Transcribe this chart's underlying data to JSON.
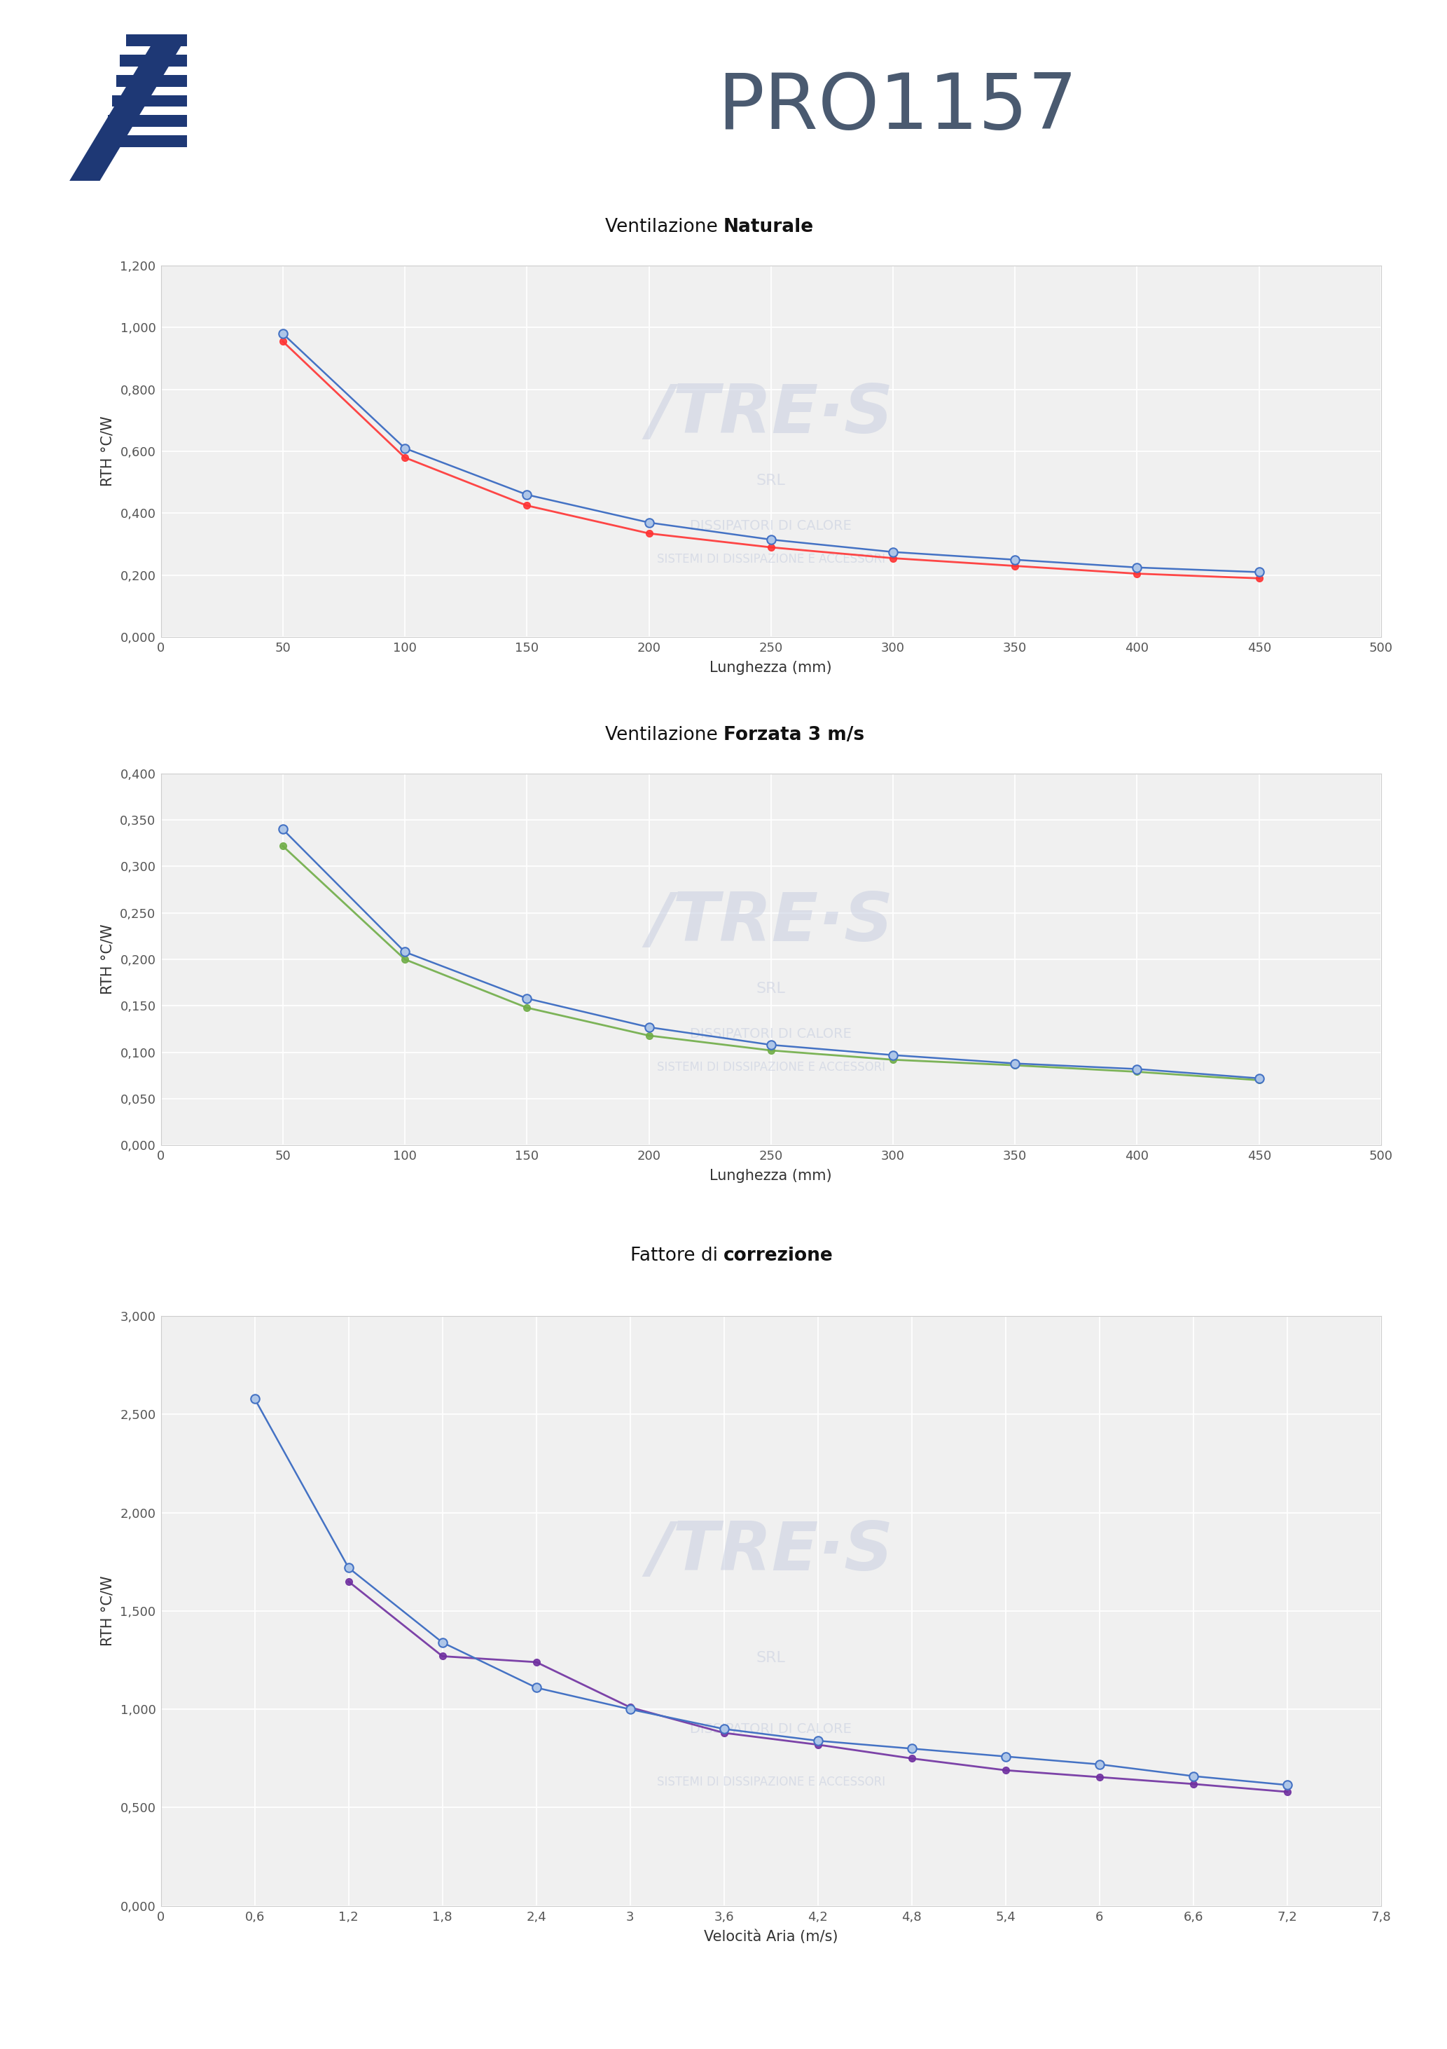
{
  "title": "PRO1157",
  "background_color": "#ffffff",
  "panel_header_color": "#dde3ed",
  "chart_bg_color": "#f0f0f0",
  "grid_color": "#ffffff",
  "watermark_color": "#c8cfe0",
  "logo_color": "#1e3875",
  "chart1": {
    "title_normal": "Ventilazione ",
    "title_bold": "Naturale",
    "xlabel": "Lunghezza (mm)",
    "ylabel": "RTH °C/W",
    "xlim": [
      0,
      500
    ],
    "ylim": [
      0.0,
      1.2
    ],
    "xticks": [
      0,
      50,
      100,
      150,
      200,
      250,
      300,
      350,
      400,
      450,
      500
    ],
    "yticks": [
      0.0,
      0.2,
      0.4,
      0.6,
      0.8,
      1.0,
      1.2
    ],
    "ytick_labels": [
      "0,000",
      "0,200",
      "0,400",
      "0,600",
      "0,800",
      "1,000",
      "1,200"
    ],
    "xtick_labels": [
      "0",
      "50",
      "100",
      "150",
      "200",
      "250",
      "300",
      "350",
      "400",
      "450",
      "500"
    ],
    "series1_x": [
      50,
      100,
      150,
      200,
      250,
      300,
      350,
      400,
      450
    ],
    "series1_y": [
      0.98,
      0.61,
      0.46,
      0.37,
      0.315,
      0.275,
      0.25,
      0.225,
      0.21
    ],
    "series1_color": "#4472c4",
    "series2_x": [
      50,
      100,
      150,
      200,
      250,
      300,
      350,
      400,
      450
    ],
    "series2_y": [
      0.955,
      0.58,
      0.425,
      0.335,
      0.29,
      0.255,
      0.23,
      0.205,
      0.19
    ],
    "series2_color": "#ff3333"
  },
  "chart2": {
    "title_normal": "Ventilazione ",
    "title_bold": "Forzata 3 m/s",
    "xlabel": "Lunghezza (mm)",
    "ylabel": "RTH °C/W",
    "xlim": [
      0,
      500
    ],
    "ylim": [
      0.0,
      0.4
    ],
    "xticks": [
      0,
      50,
      100,
      150,
      200,
      250,
      300,
      350,
      400,
      450,
      500
    ],
    "yticks": [
      0.0,
      0.05,
      0.1,
      0.15,
      0.2,
      0.25,
      0.3,
      0.35,
      0.4
    ],
    "ytick_labels": [
      "0,000",
      "0,050",
      "0,100",
      "0,150",
      "0,200",
      "0,250",
      "0,300",
      "0,350",
      "0,400"
    ],
    "xtick_labels": [
      "0",
      "50",
      "100",
      "150",
      "200",
      "250",
      "300",
      "350",
      "400",
      "450",
      "500"
    ],
    "series1_x": [
      50,
      100,
      150,
      200,
      250,
      300,
      350,
      400,
      450
    ],
    "series1_y": [
      0.34,
      0.208,
      0.158,
      0.127,
      0.108,
      0.097,
      0.088,
      0.082,
      0.072
    ],
    "series1_color": "#4472c4",
    "series2_x": [
      50,
      100,
      150,
      200,
      250,
      300,
      350,
      400,
      450
    ],
    "series2_y": [
      0.322,
      0.2,
      0.148,
      0.118,
      0.102,
      0.092,
      0.086,
      0.079,
      0.07
    ],
    "series2_color": "#70ad47"
  },
  "chart3": {
    "title_normal": "Fattore di ",
    "title_bold": "correzione",
    "xlabel": "Velocità Aria (m/s)",
    "ylabel": "RTH °C/W",
    "xlim": [
      0,
      7.8
    ],
    "ylim": [
      0.0,
      3.0
    ],
    "xticks": [
      0,
      0.6,
      1.2,
      1.8,
      2.4,
      3.0,
      3.6,
      4.2,
      4.8,
      5.4,
      6.0,
      6.6,
      7.2,
      7.8
    ],
    "yticks": [
      0.0,
      0.5,
      1.0,
      1.5,
      2.0,
      2.5,
      3.0
    ],
    "ytick_labels": [
      "0,000",
      "0,500",
      "1,000",
      "1,500",
      "2,000",
      "2,500",
      "3,000"
    ],
    "xtick_labels": [
      "0",
      "0,6",
      "1,2",
      "1,8",
      "2,4",
      "3",
      "3,6",
      "4,2",
      "4,8",
      "5,4",
      "6",
      "6,6",
      "7,2",
      "7,8"
    ],
    "series1_x": [
      0.6,
      1.2,
      1.8,
      2.4,
      3.0,
      3.6,
      4.2,
      4.8,
      5.4,
      6.0,
      6.6,
      7.2
    ],
    "series1_y": [
      2.58,
      1.72,
      1.34,
      1.11,
      1.0,
      0.9,
      0.84,
      0.8,
      0.76,
      0.72,
      0.66,
      0.615
    ],
    "series1_color": "#4472c4",
    "series2_x": [
      1.2,
      1.8,
      2.4,
      3.0,
      3.6,
      4.2,
      4.8,
      5.4,
      6.0,
      6.6,
      7.2
    ],
    "series2_y": [
      1.65,
      1.27,
      1.24,
      1.01,
      0.88,
      0.82,
      0.75,
      0.69,
      0.655,
      0.62,
      0.58
    ],
    "series2_color": "#7030a0"
  }
}
